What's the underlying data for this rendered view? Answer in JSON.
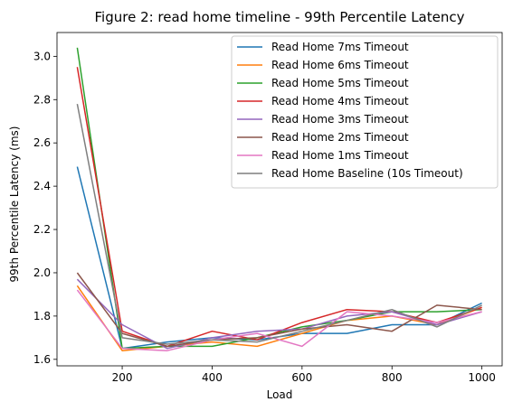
{
  "chart_data": {
    "type": "line",
    "title": "Figure 2: read home timeline - 99th Percentile Latency",
    "xlabel": "Load",
    "ylabel": "99th Percentile Latency (ms)",
    "xlim": [
      55,
      1045
    ],
    "ylim": [
      1.57,
      3.11
    ],
    "xticks": [
      200,
      400,
      600,
      800,
      1000
    ],
    "xtick_labels": [
      "200",
      "400",
      "600",
      "800",
      "1000"
    ],
    "yticks": [
      1.6,
      1.8,
      2.0,
      2.2,
      2.4,
      2.6,
      2.8,
      3.0
    ],
    "ytick_labels": [
      "1.6",
      "1.8",
      "2.0",
      "2.2",
      "2.4",
      "2.6",
      "2.8",
      "3.0"
    ],
    "grid": false,
    "legend_position": "top-right",
    "x": [
      100,
      200,
      300,
      400,
      500,
      600,
      700,
      800,
      900,
      1000
    ],
    "series": [
      {
        "name": "Read Home 7ms Timeout",
        "color": "#1f77b4",
        "values": [
          2.49,
          1.65,
          1.68,
          1.7,
          1.69,
          1.72,
          1.72,
          1.76,
          1.76,
          1.86
        ]
      },
      {
        "name": "Read Home 6ms Timeout",
        "color": "#ff7f0e",
        "values": [
          1.94,
          1.64,
          1.66,
          1.68,
          1.66,
          1.72,
          1.78,
          1.8,
          1.76,
          1.84
        ]
      },
      {
        "name": "Read Home 5ms Timeout",
        "color": "#2ca02c",
        "values": [
          3.04,
          1.65,
          1.66,
          1.66,
          1.7,
          1.75,
          1.78,
          1.82,
          1.82,
          1.83
        ]
      },
      {
        "name": "Read Home 4ms Timeout",
        "color": "#d62728",
        "values": [
          2.95,
          1.73,
          1.66,
          1.73,
          1.69,
          1.77,
          1.83,
          1.82,
          1.77,
          1.84
        ]
      },
      {
        "name": "Read Home 3ms Timeout",
        "color": "#9467bd",
        "values": [
          1.97,
          1.76,
          1.65,
          1.7,
          1.73,
          1.74,
          1.8,
          1.82,
          1.76,
          1.82
        ]
      },
      {
        "name": "Read Home 2ms Timeout",
        "color": "#8c564b",
        "values": [
          2.0,
          1.72,
          1.66,
          1.69,
          1.7,
          1.74,
          1.76,
          1.73,
          1.85,
          1.83
        ]
      },
      {
        "name": "Read Home 1ms Timeout",
        "color": "#e377c2",
        "values": [
          1.92,
          1.65,
          1.64,
          1.69,
          1.72,
          1.66,
          1.82,
          1.8,
          1.77,
          1.82
        ]
      },
      {
        "name": "Read Home Baseline (10s Timeout)",
        "color": "#7f7f7f",
        "values": [
          2.78,
          1.7,
          1.67,
          1.69,
          1.68,
          1.73,
          1.78,
          1.83,
          1.75,
          1.85
        ]
      }
    ]
  }
}
